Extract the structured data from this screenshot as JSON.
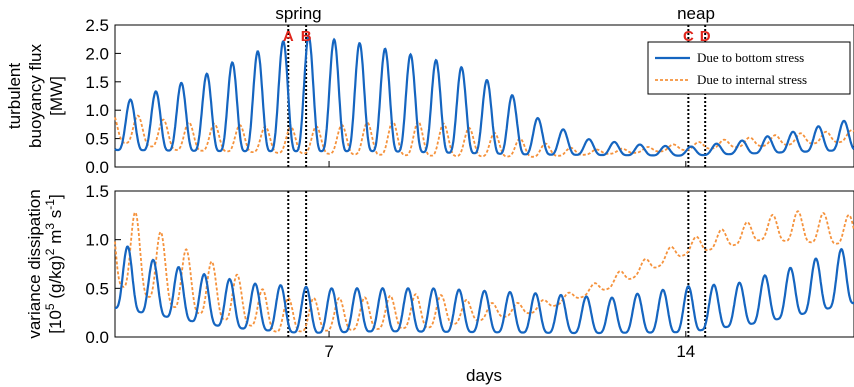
{
  "chart_data": [
    {
      "type": "line",
      "name": "top",
      "ylabel_lines": [
        "turbulent",
        "buoyancy flux",
        "[MW]"
      ],
      "xlim": [
        2.8,
        17.3
      ],
      "ylim": [
        0,
        2.5
      ],
      "yticks": [
        "0.0",
        "0.5",
        "1.0",
        "1.5",
        "2.0",
        "2.5"
      ],
      "ytick_values": [
        0,
        0.5,
        1.0,
        1.5,
        2.0,
        2.5
      ],
      "events": [
        {
          "label": "spring",
          "x": 6.4
        },
        {
          "label": "neap",
          "x": 14.2
        }
      ],
      "markers": [
        {
          "label": "A",
          "x": 6.2
        },
        {
          "label": "B",
          "x": 6.55
        },
        {
          "label": "C",
          "x": 14.05
        },
        {
          "label": "D",
          "x": 14.38
        }
      ],
      "legend": {
        "position": "top-right",
        "entries": [
          "Due to bottom stress",
          "Due to internal stress"
        ]
      },
      "series": [
        {
          "name": "Due to bottom stress",
          "period": 0.5,
          "phase": 0.1,
          "peaks": [
            [
              2.8,
              1.1
            ],
            [
              3.5,
              1.3
            ],
            [
              4.5,
              1.6
            ],
            [
              5.5,
              2.0
            ],
            [
              6.2,
              2.25
            ],
            [
              6.6,
              2.3
            ],
            [
              7.5,
              2.2
            ],
            [
              8.5,
              2.0
            ],
            [
              9.5,
              1.8
            ],
            [
              10.5,
              1.35
            ],
            [
              11.0,
              0.9
            ],
            [
              12.0,
              0.5
            ],
            [
              13.0,
              0.4
            ],
            [
              14.0,
              0.35
            ],
            [
              15.0,
              0.45
            ],
            [
              16.0,
              0.6
            ],
            [
              17.3,
              0.85
            ]
          ],
          "troughs": [
            [
              2.8,
              0.3
            ],
            [
              5.0,
              0.28
            ],
            [
              8.0,
              0.28
            ],
            [
              11.0,
              0.22
            ],
            [
              14.0,
              0.2
            ],
            [
              17.3,
              0.3
            ]
          ]
        },
        {
          "name": "Due to internal stress",
          "period": 0.5,
          "phase": 0.25,
          "peaks": [
            [
              2.8,
              0.95
            ],
            [
              3.3,
              0.9
            ],
            [
              4.0,
              0.8
            ],
            [
              5.0,
              0.75
            ],
            [
              6.0,
              0.7
            ],
            [
              7.0,
              0.72
            ],
            [
              8.0,
              0.8
            ],
            [
              9.0,
              0.8
            ],
            [
              10.0,
              0.65
            ],
            [
              11.0,
              0.45
            ],
            [
              12.0,
              0.3
            ],
            [
              13.0,
              0.33
            ],
            [
              14.0,
              0.42
            ],
            [
              15.0,
              0.5
            ],
            [
              16.0,
              0.58
            ],
            [
              17.3,
              0.65
            ]
          ],
          "troughs": [
            [
              2.8,
              0.45
            ],
            [
              4.0,
              0.3
            ],
            [
              6.0,
              0.25
            ],
            [
              9.0,
              0.2
            ],
            [
              11.0,
              0.18
            ],
            [
              13.0,
              0.25
            ],
            [
              15.0,
              0.35
            ],
            [
              17.3,
              0.45
            ]
          ]
        }
      ]
    },
    {
      "type": "line",
      "name": "bottom",
      "ylabel_lines": [
        "variance dissipation",
        "[10^5 (g/kg)^2 m^3 s^-1]"
      ],
      "xlabel": "days",
      "xlim": [
        2.8,
        17.3
      ],
      "ylim": [
        0,
        1.5
      ],
      "yticks": [
        "0.0",
        "0.5",
        "1.0",
        "1.5"
      ],
      "ytick_values": [
        0,
        0.5,
        1.0,
        1.5
      ],
      "xticks": [
        "7",
        "14"
      ],
      "xtick_values": [
        7,
        14
      ],
      "series": [
        {
          "name": "Due to bottom stress",
          "period": 0.5,
          "phase": 0.05,
          "peaks": [
            [
              2.8,
              1.0
            ],
            [
              3.5,
              0.8
            ],
            [
              4.5,
              0.65
            ],
            [
              5.5,
              0.55
            ],
            [
              7.0,
              0.5
            ],
            [
              9.0,
              0.5
            ],
            [
              11.0,
              0.45
            ],
            [
              12.5,
              0.4
            ],
            [
              14.0,
              0.52
            ],
            [
              15.0,
              0.55
            ],
            [
              16.0,
              0.7
            ],
            [
              17.3,
              0.95
            ]
          ],
          "troughs": [
            [
              2.8,
              0.3
            ],
            [
              5.0,
              0.1
            ],
            [
              6.5,
              0.04
            ],
            [
              8.0,
              0.06
            ],
            [
              10.0,
              0.05
            ],
            [
              12.0,
              0.04
            ],
            [
              14.0,
              0.05
            ],
            [
              15.5,
              0.15
            ],
            [
              17.3,
              0.35
            ]
          ]
        },
        {
          "name": "Due to internal stress",
          "period": 0.5,
          "phase": 0.2,
          "peaks": [
            [
              2.8,
              1.4
            ],
            [
              3.3,
              1.25
            ],
            [
              4.0,
              0.95
            ],
            [
              5.0,
              0.7
            ],
            [
              6.0,
              0.4
            ],
            [
              7.5,
              0.4
            ],
            [
              9.0,
              0.45
            ],
            [
              10.0,
              0.35
            ],
            [
              11.0,
              0.35
            ],
            [
              12.0,
              0.5
            ],
            [
              13.0,
              0.75
            ],
            [
              14.0,
              1.0
            ],
            [
              15.0,
              1.15
            ],
            [
              16.0,
              1.3
            ],
            [
              17.3,
              1.25
            ]
          ],
          "troughs": [
            [
              2.8,
              0.55
            ],
            [
              4.0,
              0.3
            ],
            [
              6.0,
              0.05
            ],
            [
              9.0,
              0.1
            ],
            [
              11.0,
              0.25
            ],
            [
              12.5,
              0.5
            ],
            [
              14.0,
              0.85
            ],
            [
              15.5,
              1.0
            ],
            [
              17.3,
              0.95
            ]
          ]
        }
      ]
    }
  ],
  "colors": {
    "bottom_stress": "#1565c0",
    "internal_stress": "#f5923c",
    "marker_text": "#e0251b"
  }
}
